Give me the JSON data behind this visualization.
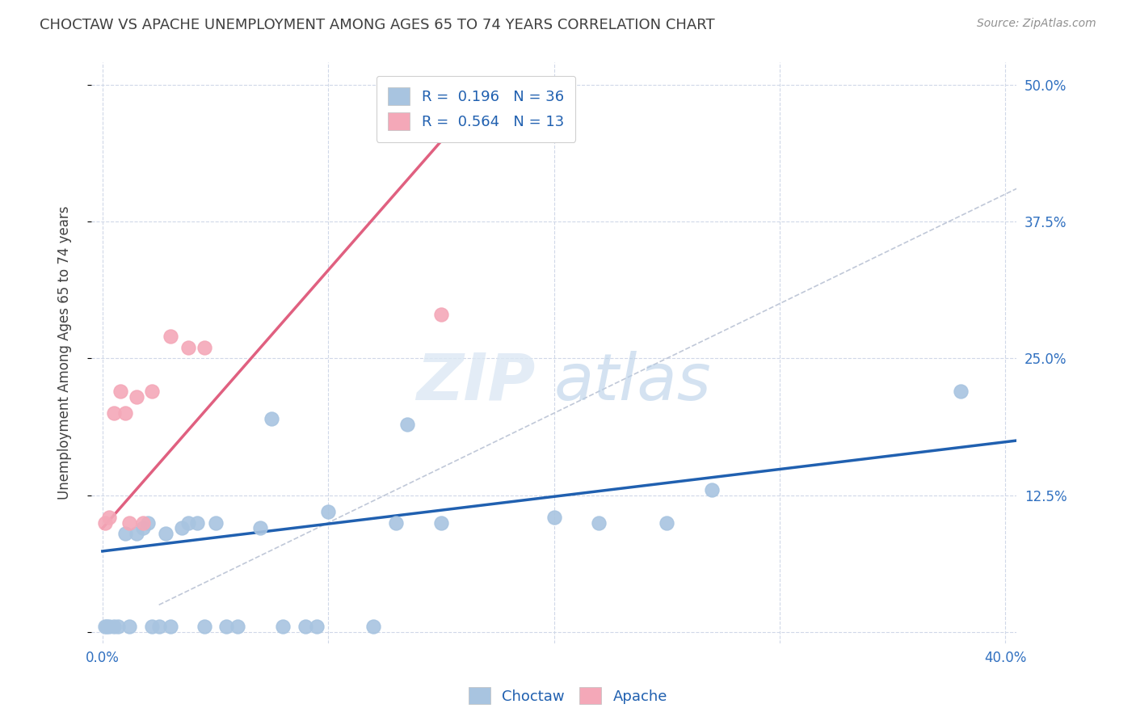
{
  "title": "CHOCTAW VS APACHE UNEMPLOYMENT AMONG AGES 65 TO 74 YEARS CORRELATION CHART",
  "source": "Source: ZipAtlas.com",
  "xlabel": "",
  "ylabel": "Unemployment Among Ages 65 to 74 years",
  "xlim": [
    -0.005,
    0.405
  ],
  "ylim": [
    -0.01,
    0.52
  ],
  "xticks": [
    0.0,
    0.1,
    0.2,
    0.3,
    0.4
  ],
  "xticklabels": [
    "0.0%",
    "",
    "",
    "",
    "40.0%"
  ],
  "yticks": [
    0.0,
    0.125,
    0.25,
    0.375,
    0.5
  ],
  "yticklabels": [
    "",
    "12.5%",
    "25.0%",
    "37.5%",
    "50.0%"
  ],
  "choctaw_r": 0.196,
  "choctaw_n": 36,
  "apache_r": 0.564,
  "apache_n": 13,
  "choctaw_color": "#a8c4e0",
  "apache_color": "#f4a8b8",
  "choctaw_line_color": "#2060b0",
  "apache_line_color": "#e06080",
  "diag_line_color": "#c0c8d8",
  "legend_text_color": "#2060b0",
  "right_axis_color": "#3070c0",
  "title_color": "#404040",
  "source_color": "#909090",
  "background_color": "#ffffff",
  "grid_color": "#d0d8e8",
  "choctaw_x": [
    0.001,
    0.002,
    0.003,
    0.005,
    0.007,
    0.01,
    0.012,
    0.015,
    0.018,
    0.02,
    0.022,
    0.025,
    0.028,
    0.03,
    0.035,
    0.038,
    0.042,
    0.045,
    0.05,
    0.055,
    0.06,
    0.07,
    0.075,
    0.08,
    0.09,
    0.095,
    0.1,
    0.12,
    0.13,
    0.135,
    0.15,
    0.2,
    0.22,
    0.25,
    0.27,
    0.38
  ],
  "choctaw_y": [
    0.005,
    0.005,
    0.005,
    0.005,
    0.005,
    0.09,
    0.005,
    0.09,
    0.095,
    0.1,
    0.005,
    0.005,
    0.09,
    0.005,
    0.095,
    0.1,
    0.1,
    0.005,
    0.1,
    0.005,
    0.005,
    0.095,
    0.195,
    0.005,
    0.005,
    0.005,
    0.11,
    0.005,
    0.1,
    0.19,
    0.1,
    0.105,
    0.1,
    0.1,
    0.13,
    0.22
  ],
  "apache_x": [
    0.001,
    0.003,
    0.005,
    0.008,
    0.01,
    0.012,
    0.015,
    0.018,
    0.022,
    0.03,
    0.038,
    0.045,
    0.15
  ],
  "apache_y": [
    0.1,
    0.105,
    0.2,
    0.22,
    0.2,
    0.1,
    0.215,
    0.1,
    0.22,
    0.27,
    0.26,
    0.26,
    0.29
  ],
  "choctaw_trendline_x": [
    0.0,
    0.405
  ],
  "choctaw_trendline_y": [
    0.074,
    0.175
  ],
  "apache_trendline_x": [
    0.0,
    0.155
  ],
  "apache_trendline_y": [
    0.095,
    0.46
  ],
  "diag_line_x": [
    0.025,
    0.405
  ],
  "diag_line_y": [
    0.025,
    0.405
  ]
}
